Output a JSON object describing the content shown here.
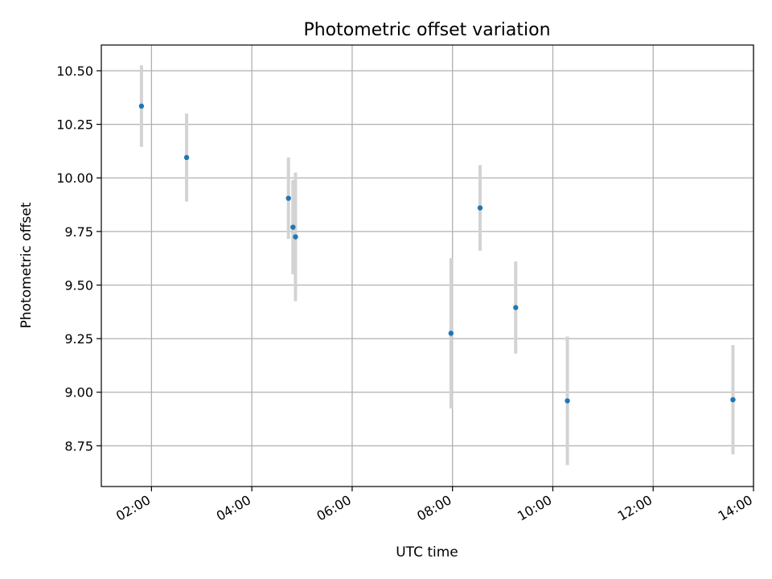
{
  "chart_data": {
    "type": "scatter",
    "title": "Photometric offset variation",
    "xlabel": "UTC time",
    "ylabel": "Photometric offset",
    "x_unit": "hours",
    "xlim": [
      1.0,
      14.0
    ],
    "ylim": [
      8.56,
      10.62
    ],
    "grid": true,
    "x_ticks": [
      {
        "value": 2,
        "label": "02:00"
      },
      {
        "value": 4,
        "label": "04:00"
      },
      {
        "value": 6,
        "label": "06:00"
      },
      {
        "value": 8,
        "label": "08:00"
      },
      {
        "value": 10,
        "label": "10:00"
      },
      {
        "value": 12,
        "label": "12:00"
      },
      {
        "value": 14,
        "label": "14:00"
      }
    ],
    "y_ticks": [
      {
        "value": 8.75,
        "label": "8.75"
      },
      {
        "value": 9.0,
        "label": "9.00"
      },
      {
        "value": 9.25,
        "label": "9.25"
      },
      {
        "value": 9.5,
        "label": "9.50"
      },
      {
        "value": 9.75,
        "label": "9.75"
      },
      {
        "value": 10.0,
        "label": "10.00"
      },
      {
        "value": 10.25,
        "label": "10.25"
      },
      {
        "value": 10.5,
        "label": "10.50"
      }
    ],
    "points": [
      {
        "time": "01:48",
        "x": 1.8,
        "y": 10.335,
        "err": 0.19
      },
      {
        "time": "02:42",
        "x": 2.7,
        "y": 10.095,
        "err": 0.205
      },
      {
        "time": "04:44",
        "x": 4.73,
        "y": 9.905,
        "err": 0.19
      },
      {
        "time": "04:49",
        "x": 4.82,
        "y": 9.77,
        "err": 0.22
      },
      {
        "time": "04:52",
        "x": 4.87,
        "y": 9.725,
        "err": 0.3
      },
      {
        "time": "07:58",
        "x": 7.97,
        "y": 9.275,
        "err": 0.35
      },
      {
        "time": "08:33",
        "x": 8.55,
        "y": 9.86,
        "err": 0.2
      },
      {
        "time": "09:16",
        "x": 9.26,
        "y": 9.395,
        "err": 0.215
      },
      {
        "time": "10:17",
        "x": 10.29,
        "y": 8.96,
        "err": 0.3
      },
      {
        "time": "13:35",
        "x": 13.59,
        "y": 8.965,
        "err": 0.255
      }
    ],
    "colors": {
      "point": "#1f77b4",
      "errorbar": "#d3d3d3",
      "grid": "#b0b0b0",
      "axes": "#000000"
    }
  }
}
